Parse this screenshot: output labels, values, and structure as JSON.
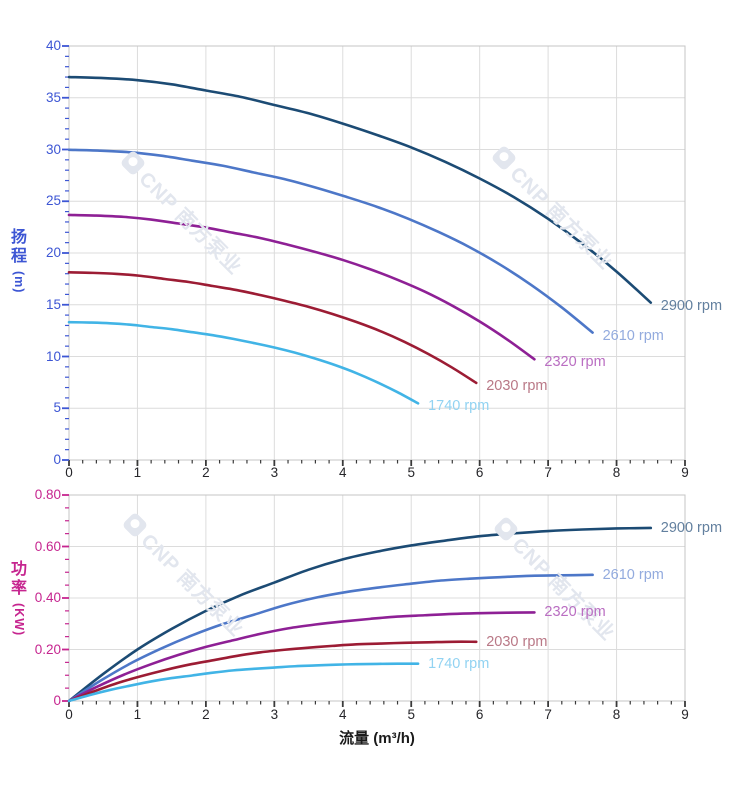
{
  "page": {
    "background": "#ffffff"
  },
  "watermark": {
    "text": "CNP 南方泵业"
  },
  "colors": {
    "grid": "#dcdcdc",
    "plot_border": "#c5c5c5",
    "x_tick": "#3a3a3a",
    "x_tick_label": "#26262a",
    "head_axis": "#3d56d4",
    "power_axis": "#c6258f",
    "watermark": "#e2e6ee"
  },
  "chart_data": [
    {
      "id": "head",
      "type": "line",
      "title": "",
      "xlabel": "",
      "ylabel": "扬程 (m)",
      "ylabel_stack": "扬程",
      "ylabel_unit": "(m)",
      "xlim": [
        0,
        9
      ],
      "ylim": [
        0,
        40
      ],
      "x_ticks": [
        0,
        1,
        2,
        3,
        4,
        5,
        6,
        7,
        8,
        9
      ],
      "x_minor_step": 0.2,
      "y_ticks": [
        0,
        5,
        10,
        15,
        20,
        25,
        30,
        35,
        40
      ],
      "y_tick_labels": [
        "0",
        "5",
        "10",
        "15",
        "20",
        "25",
        "30",
        "35",
        "40"
      ],
      "y_minor_step": 1,
      "grid": true,
      "legend_position": "labels-at-line-ends",
      "axis_color": "#3d56d4",
      "series": [
        {
          "name": "2900 rpm",
          "rpm": 2900,
          "color": "#1c4b74",
          "label_color": "#63809f",
          "points": [
            [
              0,
              37
            ],
            [
              0.5,
              36.9
            ],
            [
              1,
              36.7
            ],
            [
              1.5,
              36.3
            ],
            [
              2,
              35.7
            ],
            [
              2.5,
              35.1
            ],
            [
              3,
              34.3
            ],
            [
              3.5,
              33.5
            ],
            [
              4,
              32.5
            ],
            [
              4.5,
              31.4
            ],
            [
              5,
              30.2
            ],
            [
              5.5,
              28.8
            ],
            [
              6,
              27.2
            ],
            [
              6.5,
              25.4
            ],
            [
              7,
              23.3
            ],
            [
              7.5,
              20.9
            ],
            [
              8,
              18.2
            ],
            [
              8.5,
              15.2
            ]
          ]
        },
        {
          "name": "2610 rpm",
          "rpm": 2610,
          "color": "#4d77c8",
          "label_color": "#93abde",
          "points": [
            [
              0,
              29.97
            ],
            [
              0.45,
              29.89
            ],
            [
              0.9,
              29.73
            ],
            [
              1.35,
              29.4
            ],
            [
              1.8,
              28.92
            ],
            [
              2.25,
              28.43
            ],
            [
              2.7,
              27.78
            ],
            [
              3.15,
              27.14
            ],
            [
              3.6,
              26.33
            ],
            [
              4.05,
              25.43
            ],
            [
              4.5,
              24.46
            ],
            [
              4.95,
              23.33
            ],
            [
              5.4,
              22.03
            ],
            [
              5.85,
              20.57
            ],
            [
              6.3,
              18.87
            ],
            [
              6.75,
              16.93
            ],
            [
              7.2,
              14.74
            ],
            [
              7.65,
              12.31
            ]
          ]
        },
        {
          "name": "2320 rpm",
          "rpm": 2320,
          "color": "#8e2095",
          "label_color": "#ba6ec2",
          "points": [
            [
              0,
              23.68
            ],
            [
              0.4,
              23.62
            ],
            [
              0.8,
              23.49
            ],
            [
              1.2,
              23.23
            ],
            [
              1.6,
              22.85
            ],
            [
              2,
              22.46
            ],
            [
              2.4,
              21.95
            ],
            [
              2.8,
              21.44
            ],
            [
              3.2,
              20.8
            ],
            [
              3.6,
              20.1
            ],
            [
              4,
              19.33
            ],
            [
              4.4,
              18.43
            ],
            [
              4.8,
              17.41
            ],
            [
              5.2,
              16.26
            ],
            [
              5.6,
              14.91
            ],
            [
              6,
              13.38
            ],
            [
              6.4,
              11.65
            ],
            [
              6.8,
              9.73
            ]
          ]
        },
        {
          "name": "2030 rpm",
          "rpm": 2030,
          "color": "#9c1c34",
          "label_color": "#b97886",
          "points": [
            [
              0,
              18.13
            ],
            [
              0.35,
              18.08
            ],
            [
              0.7,
              17.98
            ],
            [
              1.05,
              17.79
            ],
            [
              1.4,
              17.49
            ],
            [
              1.75,
              17.2
            ],
            [
              2.1,
              16.81
            ],
            [
              2.45,
              16.42
            ],
            [
              2.8,
              15.93
            ],
            [
              3.15,
              15.39
            ],
            [
              3.5,
              14.8
            ],
            [
              3.85,
              14.11
            ],
            [
              4.2,
              13.33
            ],
            [
              4.55,
              12.45
            ],
            [
              4.9,
              11.42
            ],
            [
              5.25,
              10.24
            ],
            [
              5.6,
              8.92
            ],
            [
              5.95,
              7.45
            ]
          ]
        },
        {
          "name": "1740 rpm",
          "rpm": 1740,
          "color": "#41b4e6",
          "label_color": "#92d3f2",
          "points": [
            [
              0,
              13.32
            ],
            [
              0.3,
              13.28
            ],
            [
              0.6,
              13.21
            ],
            [
              0.9,
              13.07
            ],
            [
              1.2,
              12.85
            ],
            [
              1.5,
              12.64
            ],
            [
              1.8,
              12.35
            ],
            [
              2.1,
              12.06
            ],
            [
              2.4,
              11.7
            ],
            [
              2.7,
              11.3
            ],
            [
              3,
              10.87
            ],
            [
              3.3,
              10.37
            ],
            [
              3.6,
              9.79
            ],
            [
              3.9,
              9.14
            ],
            [
              4.2,
              8.39
            ],
            [
              4.5,
              7.52
            ],
            [
              4.8,
              6.55
            ],
            [
              5.1,
              5.47
            ]
          ]
        }
      ]
    },
    {
      "id": "power",
      "type": "line",
      "title": "",
      "xlabel": "流量 (m³/h)",
      "ylabel": "功率 (KW)",
      "ylabel_stack": "功率",
      "ylabel_unit": "(KW)",
      "xlim": [
        0,
        9
      ],
      "ylim": [
        0,
        0.8
      ],
      "x_ticks": [
        0,
        1,
        2,
        3,
        4,
        5,
        6,
        7,
        8,
        9
      ],
      "x_minor_step": 0.2,
      "y_ticks": [
        0,
        0.2,
        0.4,
        0.6,
        0.8
      ],
      "y_tick_labels": [
        "0",
        "0.20",
        "0.40",
        "0.60",
        "0.80"
      ],
      "y_minor_step": 0.05,
      "grid": true,
      "legend_position": "labels-at-line-ends",
      "axis_color": "#c6258f",
      "series": [
        {
          "name": "2900 rpm",
          "rpm": 2900,
          "color": "#1c4b74",
          "label_color": "#63809f",
          "points": [
            [
              0,
              0
            ],
            [
              0.5,
              0.105
            ],
            [
              1,
              0.2
            ],
            [
              1.5,
              0.28
            ],
            [
              2,
              0.35
            ],
            [
              2.5,
              0.41
            ],
            [
              3,
              0.46
            ],
            [
              3.5,
              0.51
            ],
            [
              4,
              0.55
            ],
            [
              4.5,
              0.58
            ],
            [
              5,
              0.604
            ],
            [
              5.5,
              0.623
            ],
            [
              6,
              0.64
            ],
            [
              6.5,
              0.651
            ],
            [
              7,
              0.66
            ],
            [
              7.5,
              0.666
            ],
            [
              8,
              0.67
            ],
            [
              8.5,
              0.672
            ]
          ]
        },
        {
          "name": "2610 rpm",
          "rpm": 2610,
          "color": "#4d77c8",
          "label_color": "#93abde",
          "points": [
            [
              0,
              0
            ],
            [
              0.45,
              0.077
            ],
            [
              0.9,
              0.146
            ],
            [
              1.35,
              0.204
            ],
            [
              1.8,
              0.255
            ],
            [
              2.25,
              0.299
            ],
            [
              2.7,
              0.335
            ],
            [
              3.15,
              0.372
            ],
            [
              3.6,
              0.401
            ],
            [
              4.05,
              0.423
            ],
            [
              4.5,
              0.44
            ],
            [
              4.95,
              0.454
            ],
            [
              5.4,
              0.467
            ],
            [
              5.85,
              0.475
            ],
            [
              6.3,
              0.481
            ],
            [
              6.75,
              0.486
            ],
            [
              7.2,
              0.488
            ],
            [
              7.65,
              0.49
            ]
          ]
        },
        {
          "name": "2320 rpm",
          "rpm": 2320,
          "color": "#8e2095",
          "label_color": "#ba6ec2",
          "points": [
            [
              0,
              0
            ],
            [
              0.4,
              0.054
            ],
            [
              0.8,
              0.102
            ],
            [
              1.2,
              0.143
            ],
            [
              1.6,
              0.179
            ],
            [
              2,
              0.21
            ],
            [
              2.4,
              0.236
            ],
            [
              2.8,
              0.261
            ],
            [
              3.2,
              0.282
            ],
            [
              3.6,
              0.297
            ],
            [
              4,
              0.309
            ],
            [
              4.4,
              0.319
            ],
            [
              4.8,
              0.328
            ],
            [
              5.2,
              0.333
            ],
            [
              5.6,
              0.338
            ],
            [
              6,
              0.341
            ],
            [
              6.4,
              0.343
            ],
            [
              6.8,
              0.344
            ]
          ]
        },
        {
          "name": "2030 rpm",
          "rpm": 2030,
          "color": "#9c1c34",
          "label_color": "#b97886",
          "points": [
            [
              0,
              0
            ],
            [
              0.35,
              0.036
            ],
            [
              0.7,
              0.069
            ],
            [
              1.05,
              0.096
            ],
            [
              1.4,
              0.12
            ],
            [
              1.75,
              0.141
            ],
            [
              2.1,
              0.158
            ],
            [
              2.45,
              0.175
            ],
            [
              2.8,
              0.189
            ],
            [
              3.15,
              0.199
            ],
            [
              3.5,
              0.207
            ],
            [
              3.85,
              0.214
            ],
            [
              4.2,
              0.22
            ],
            [
              4.55,
              0.223
            ],
            [
              4.9,
              0.226
            ],
            [
              5.25,
              0.228
            ],
            [
              5.6,
              0.23
            ],
            [
              5.95,
              0.23
            ]
          ]
        },
        {
          "name": "1740 rpm",
          "rpm": 1740,
          "color": "#41b4e6",
          "label_color": "#92d3f2",
          "points": [
            [
              0,
              0
            ],
            [
              0.3,
              0.023
            ],
            [
              0.6,
              0.043
            ],
            [
              0.9,
              0.06
            ],
            [
              1.2,
              0.076
            ],
            [
              1.5,
              0.089
            ],
            [
              1.8,
              0.099
            ],
            [
              2.1,
              0.11
            ],
            [
              2.4,
              0.119
            ],
            [
              2.7,
              0.125
            ],
            [
              3,
              0.13
            ],
            [
              3.3,
              0.135
            ],
            [
              3.6,
              0.138
            ],
            [
              3.9,
              0.141
            ],
            [
              4.2,
              0.143
            ],
            [
              4.5,
              0.144
            ],
            [
              4.8,
              0.145
            ],
            [
              5.1,
              0.145
            ]
          ]
        }
      ]
    }
  ]
}
